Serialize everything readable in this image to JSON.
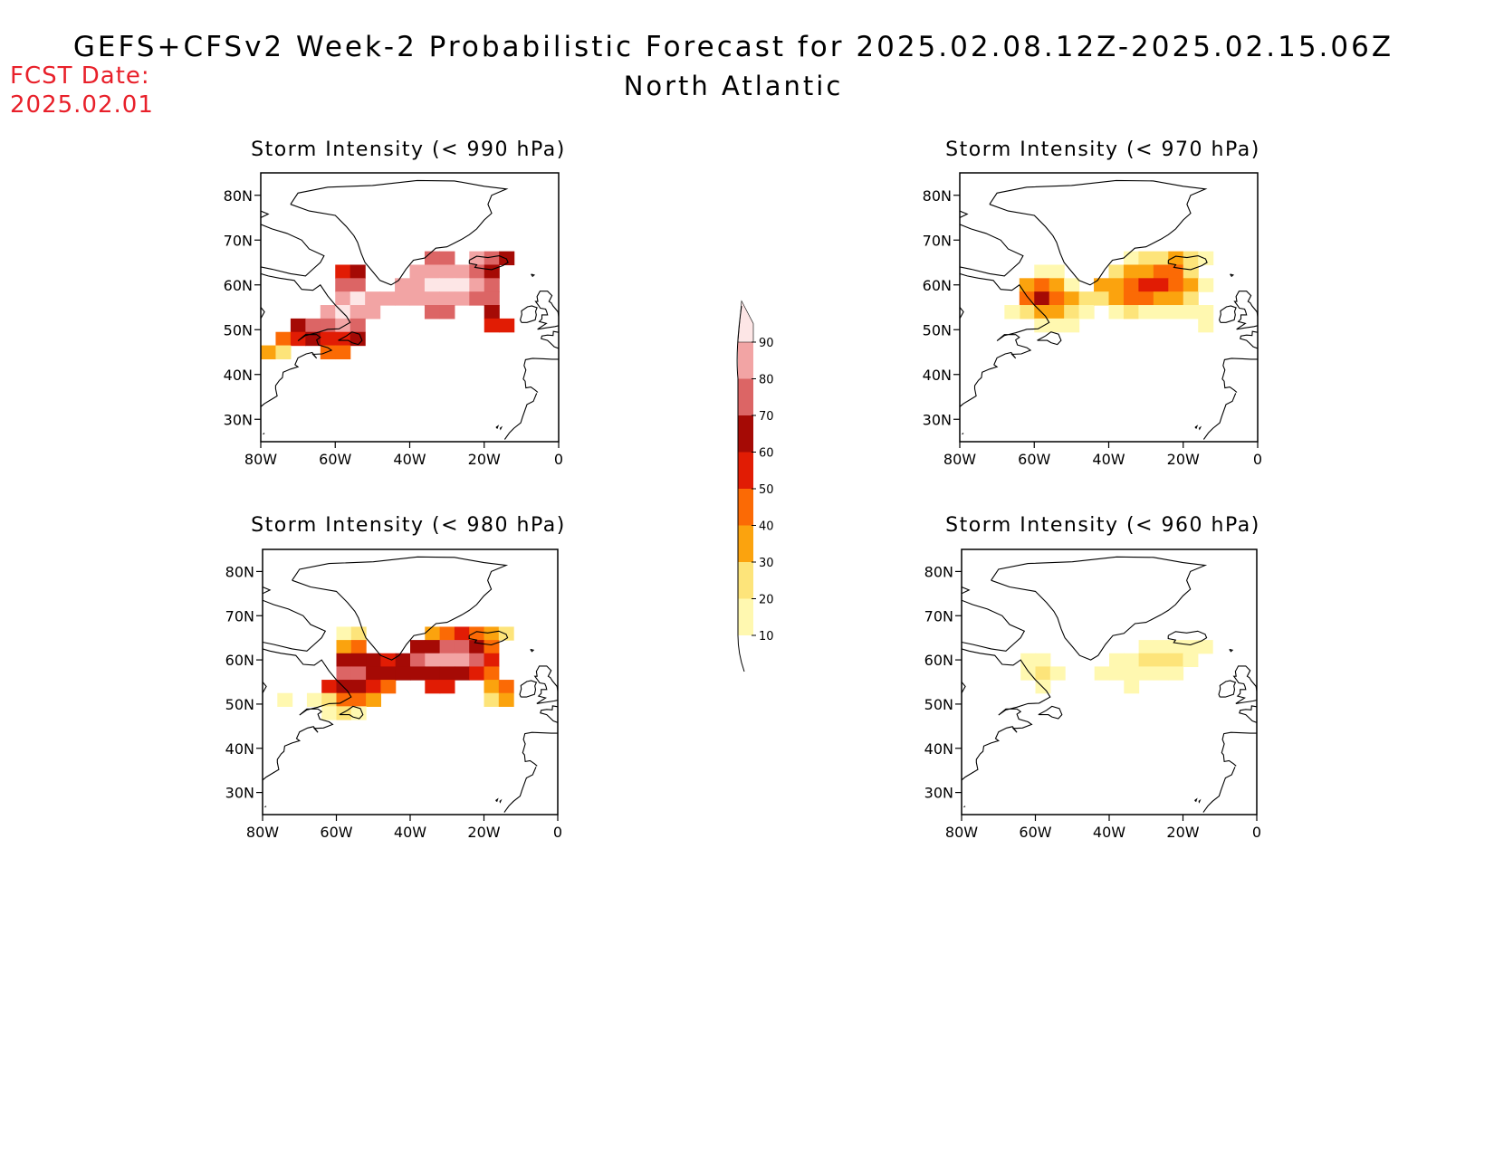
{
  "header": {
    "title": "GEFS+CFSv2 Week-2 Probabilistic Forecast for 2025.02.08.12Z-2025.02.15.06Z",
    "region": "North Atlantic",
    "fcst_label": "FCST Date:",
    "fcst_date": "2025.02.01"
  },
  "axes": {
    "lon_ticks": [
      "80W",
      "60W",
      "40W",
      "20W",
      "0"
    ],
    "lat_ticks": [
      "80N",
      "70N",
      "60N",
      "50N",
      "40N",
      "30N"
    ],
    "lon_range": [
      -80,
      0
    ],
    "lat_range": [
      25,
      85
    ]
  },
  "colorbar": {
    "labels": [
      "10",
      "20",
      "30",
      "40",
      "50",
      "60",
      "70",
      "80",
      "90"
    ],
    "bins": [
      {
        "min": 10,
        "max": 20,
        "color": "#fff8b0"
      },
      {
        "min": 20,
        "max": 30,
        "color": "#fde47a"
      },
      {
        "min": 30,
        "max": 40,
        "color": "#fba30e"
      },
      {
        "min": 40,
        "max": 50,
        "color": "#fb6a05"
      },
      {
        "min": 50,
        "max": 60,
        "color": "#e11c04"
      },
      {
        "min": 60,
        "max": 70,
        "color": "#a50a05"
      },
      {
        "min": 70,
        "max": 80,
        "color": "#dc6565"
      },
      {
        "min": 80,
        "max": 90,
        "color": "#f2a4a4"
      },
      {
        "min": 90,
        "max": 100,
        "color": "#fde6e6"
      }
    ]
  },
  "panels": [
    {
      "id": "p990",
      "title": "Storm Intensity (< 990 hPa)",
      "cells": [
        {
          "lon": -58,
          "lat": 63,
          "v": 55
        },
        {
          "lon": -54,
          "lat": 63,
          "v": 65
        },
        {
          "lon": -58,
          "lat": 60,
          "v": 75
        },
        {
          "lon": -54,
          "lat": 60,
          "v": 72
        },
        {
          "lon": -58,
          "lat": 57,
          "v": 85
        },
        {
          "lon": -54,
          "lat": 57,
          "v": 92
        },
        {
          "lon": -50,
          "lat": 57,
          "v": 88
        },
        {
          "lon": -46,
          "lat": 57,
          "v": 82
        },
        {
          "lon": -62,
          "lat": 54,
          "v": 82
        },
        {
          "lon": -58,
          "lat": 54,
          "v": 90
        },
        {
          "lon": -54,
          "lat": 54,
          "v": 86
        },
        {
          "lon": -50,
          "lat": 54,
          "v": 80
        },
        {
          "lon": -70,
          "lat": 51,
          "v": 62
        },
        {
          "lon": -66,
          "lat": 51,
          "v": 70
        },
        {
          "lon": -62,
          "lat": 51,
          "v": 75
        },
        {
          "lon": -58,
          "lat": 51,
          "v": 80
        },
        {
          "lon": -54,
          "lat": 51,
          "v": 72
        },
        {
          "lon": -74,
          "lat": 48,
          "v": 45
        },
        {
          "lon": -70,
          "lat": 48,
          "v": 55
        },
        {
          "lon": -66,
          "lat": 48,
          "v": 62
        },
        {
          "lon": -62,
          "lat": 48,
          "v": 58
        },
        {
          "lon": -58,
          "lat": 48,
          "v": 52
        },
        {
          "lon": -54,
          "lat": 48,
          "v": 60
        },
        {
          "lon": -78,
          "lat": 45,
          "v": 35
        },
        {
          "lon": -74,
          "lat": 45,
          "v": 25
        },
        {
          "lon": -62,
          "lat": 45,
          "v": 45
        },
        {
          "lon": -58,
          "lat": 45,
          "v": 48
        },
        {
          "lon": -34,
          "lat": 66,
          "v": 75
        },
        {
          "lon": -30,
          "lat": 66,
          "v": 78
        },
        {
          "lon": -22,
          "lat": 66,
          "v": 80
        },
        {
          "lon": -18,
          "lat": 66,
          "v": 72
        },
        {
          "lon": -14,
          "lat": 66,
          "v": 65
        },
        {
          "lon": -38,
          "lat": 63,
          "v": 80
        },
        {
          "lon": -34,
          "lat": 63,
          "v": 85
        },
        {
          "lon": -30,
          "lat": 63,
          "v": 86
        },
        {
          "lon": -26,
          "lat": 63,
          "v": 84
        },
        {
          "lon": -22,
          "lat": 63,
          "v": 78
        },
        {
          "lon": -18,
          "lat": 63,
          "v": 68
        },
        {
          "lon": -42,
          "lat": 60,
          "v": 82
        },
        {
          "lon": -38,
          "lat": 60,
          "v": 86
        },
        {
          "lon": -34,
          "lat": 60,
          "v": 92
        },
        {
          "lon": -30,
          "lat": 60,
          "v": 94
        },
        {
          "lon": -26,
          "lat": 60,
          "v": 90
        },
        {
          "lon": -22,
          "lat": 60,
          "v": 82
        },
        {
          "lon": -18,
          "lat": 60,
          "v": 75
        },
        {
          "lon": -42,
          "lat": 57,
          "v": 80
        },
        {
          "lon": -38,
          "lat": 57,
          "v": 84
        },
        {
          "lon": -34,
          "lat": 57,
          "v": 86
        },
        {
          "lon": -30,
          "lat": 57,
          "v": 85
        },
        {
          "lon": -26,
          "lat": 57,
          "v": 80
        },
        {
          "lon": -22,
          "lat": 57,
          "v": 76
        },
        {
          "lon": -18,
          "lat": 57,
          "v": 72
        },
        {
          "lon": -34,
          "lat": 54,
          "v": 75
        },
        {
          "lon": -30,
          "lat": 54,
          "v": 72
        },
        {
          "lon": -18,
          "lat": 54,
          "v": 62
        },
        {
          "lon": -14,
          "lat": 51,
          "v": 55
        },
        {
          "lon": -18,
          "lat": 51,
          "v": 58
        }
      ]
    },
    {
      "id": "p970",
      "title": "Storm Intensity (< 970 hPa)",
      "cells": [
        {
          "lon": -58,
          "lat": 63,
          "v": 15
        },
        {
          "lon": -54,
          "lat": 63,
          "v": 12
        },
        {
          "lon": -62,
          "lat": 60,
          "v": 30
        },
        {
          "lon": -58,
          "lat": 60,
          "v": 45
        },
        {
          "lon": -54,
          "lat": 60,
          "v": 35
        },
        {
          "lon": -50,
          "lat": 60,
          "v": 18
        },
        {
          "lon": -62,
          "lat": 57,
          "v": 45
        },
        {
          "lon": -58,
          "lat": 57,
          "v": 65
        },
        {
          "lon": -54,
          "lat": 57,
          "v": 48
        },
        {
          "lon": -50,
          "lat": 57,
          "v": 35
        },
        {
          "lon": -46,
          "lat": 57,
          "v": 22
        },
        {
          "lon": -62,
          "lat": 54,
          "v": 25
        },
        {
          "lon": -58,
          "lat": 54,
          "v": 35
        },
        {
          "lon": -54,
          "lat": 54,
          "v": 30
        },
        {
          "lon": -50,
          "lat": 54,
          "v": 28
        },
        {
          "lon": -46,
          "lat": 54,
          "v": 18
        },
        {
          "lon": -58,
          "lat": 51,
          "v": 15
        },
        {
          "lon": -54,
          "lat": 51,
          "v": 18
        },
        {
          "lon": -50,
          "lat": 51,
          "v": 12
        },
        {
          "lon": -66,
          "lat": 54,
          "v": 12
        },
        {
          "lon": -34,
          "lat": 66,
          "v": 15
        },
        {
          "lon": -30,
          "lat": 66,
          "v": 25
        },
        {
          "lon": -26,
          "lat": 66,
          "v": 28
        },
        {
          "lon": -22,
          "lat": 66,
          "v": 32
        },
        {
          "lon": -18,
          "lat": 66,
          "v": 20
        },
        {
          "lon": -14,
          "lat": 66,
          "v": 14
        },
        {
          "lon": -38,
          "lat": 63,
          "v": 25
        },
        {
          "lon": -34,
          "lat": 63,
          "v": 35
        },
        {
          "lon": -30,
          "lat": 63,
          "v": 38
        },
        {
          "lon": -26,
          "lat": 63,
          "v": 42
        },
        {
          "lon": -22,
          "lat": 63,
          "v": 40
        },
        {
          "lon": -18,
          "lat": 63,
          "v": 28
        },
        {
          "lon": -42,
          "lat": 60,
          "v": 32
        },
        {
          "lon": -38,
          "lat": 60,
          "v": 38
        },
        {
          "lon": -34,
          "lat": 60,
          "v": 45
        },
        {
          "lon": -30,
          "lat": 60,
          "v": 55
        },
        {
          "lon": -26,
          "lat": 60,
          "v": 52
        },
        {
          "lon": -22,
          "lat": 60,
          "v": 48
        },
        {
          "lon": -18,
          "lat": 60,
          "v": 30
        },
        {
          "lon": -14,
          "lat": 60,
          "v": 15
        },
        {
          "lon": -42,
          "lat": 57,
          "v": 28
        },
        {
          "lon": -38,
          "lat": 57,
          "v": 35
        },
        {
          "lon": -34,
          "lat": 57,
          "v": 42
        },
        {
          "lon": -30,
          "lat": 57,
          "v": 40
        },
        {
          "lon": -26,
          "lat": 57,
          "v": 38
        },
        {
          "lon": -22,
          "lat": 57,
          "v": 32
        },
        {
          "lon": -18,
          "lat": 57,
          "v": 22
        },
        {
          "lon": -38,
          "lat": 54,
          "v": 15
        },
        {
          "lon": -34,
          "lat": 54,
          "v": 22
        },
        {
          "lon": -30,
          "lat": 54,
          "v": 18
        },
        {
          "lon": -26,
          "lat": 54,
          "v": 15
        },
        {
          "lon": -22,
          "lat": 54,
          "v": 14
        },
        {
          "lon": -18,
          "lat": 54,
          "v": 12
        },
        {
          "lon": -14,
          "lat": 54,
          "v": 12
        },
        {
          "lon": -14,
          "lat": 51,
          "v": 11
        }
      ]
    },
    {
      "id": "p980",
      "title": "Storm Intensity (< 980 hPa)",
      "cells": [
        {
          "lon": -58,
          "lat": 66,
          "v": 15
        },
        {
          "lon": -54,
          "lat": 66,
          "v": 20
        },
        {
          "lon": -58,
          "lat": 63,
          "v": 35
        },
        {
          "lon": -54,
          "lat": 63,
          "v": 42
        },
        {
          "lon": -58,
          "lat": 60,
          "v": 65
        },
        {
          "lon": -54,
          "lat": 60,
          "v": 68
        },
        {
          "lon": -50,
          "lat": 60,
          "v": 62
        },
        {
          "lon": -46,
          "lat": 60,
          "v": 58
        },
        {
          "lon": -58,
          "lat": 57,
          "v": 72
        },
        {
          "lon": -54,
          "lat": 57,
          "v": 75
        },
        {
          "lon": -50,
          "lat": 57,
          "v": 65
        },
        {
          "lon": -46,
          "lat": 57,
          "v": 62
        },
        {
          "lon": -62,
          "lat": 54,
          "v": 55
        },
        {
          "lon": -58,
          "lat": 54,
          "v": 60
        },
        {
          "lon": -54,
          "lat": 54,
          "v": 65
        },
        {
          "lon": -50,
          "lat": 54,
          "v": 55
        },
        {
          "lon": -46,
          "lat": 54,
          "v": 48
        },
        {
          "lon": -66,
          "lat": 51,
          "v": 15
        },
        {
          "lon": -62,
          "lat": 51,
          "v": 25
        },
        {
          "lon": -58,
          "lat": 51,
          "v": 40
        },
        {
          "lon": -54,
          "lat": 51,
          "v": 45
        },
        {
          "lon": -50,
          "lat": 51,
          "v": 35
        },
        {
          "lon": -74,
          "lat": 51,
          "v": 12
        },
        {
          "lon": -62,
          "lat": 48,
          "v": 18
        },
        {
          "lon": -58,
          "lat": 48,
          "v": 25
        },
        {
          "lon": -54,
          "lat": 48,
          "v": 15
        },
        {
          "lon": -34,
          "lat": 66,
          "v": 35
        },
        {
          "lon": -30,
          "lat": 66,
          "v": 48
        },
        {
          "lon": -26,
          "lat": 66,
          "v": 52
        },
        {
          "lon": -22,
          "lat": 66,
          "v": 45
        },
        {
          "lon": -18,
          "lat": 66,
          "v": 35
        },
        {
          "lon": -14,
          "lat": 66,
          "v": 22
        },
        {
          "lon": -38,
          "lat": 63,
          "v": 60
        },
        {
          "lon": -34,
          "lat": 63,
          "v": 68
        },
        {
          "lon": -30,
          "lat": 63,
          "v": 72
        },
        {
          "lon": -26,
          "lat": 63,
          "v": 70
        },
        {
          "lon": -22,
          "lat": 63,
          "v": 65
        },
        {
          "lon": -18,
          "lat": 63,
          "v": 45
        },
        {
          "lon": -42,
          "lat": 60,
          "v": 65
        },
        {
          "lon": -38,
          "lat": 60,
          "v": 72
        },
        {
          "lon": -34,
          "lat": 60,
          "v": 82
        },
        {
          "lon": -30,
          "lat": 60,
          "v": 85
        },
        {
          "lon": -26,
          "lat": 60,
          "v": 80
        },
        {
          "lon": -22,
          "lat": 60,
          "v": 70
        },
        {
          "lon": -18,
          "lat": 60,
          "v": 55
        },
        {
          "lon": -42,
          "lat": 57,
          "v": 62
        },
        {
          "lon": -38,
          "lat": 57,
          "v": 68
        },
        {
          "lon": -34,
          "lat": 57,
          "v": 65
        },
        {
          "lon": -30,
          "lat": 57,
          "v": 66
        },
        {
          "lon": -26,
          "lat": 57,
          "v": 62
        },
        {
          "lon": -22,
          "lat": 57,
          "v": 58
        },
        {
          "lon": -18,
          "lat": 57,
          "v": 48
        },
        {
          "lon": -34,
          "lat": 54,
          "v": 55
        },
        {
          "lon": -30,
          "lat": 54,
          "v": 50
        },
        {
          "lon": -18,
          "lat": 54,
          "v": 35
        },
        {
          "lon": -14,
          "lat": 54,
          "v": 42
        },
        {
          "lon": -18,
          "lat": 51,
          "v": 25
        },
        {
          "lon": -14,
          "lat": 51,
          "v": 30
        }
      ]
    },
    {
      "id": "p960",
      "title": "Storm Intensity (< 960 hPa)",
      "cells": [
        {
          "lon": -62,
          "lat": 60,
          "v": 12
        },
        {
          "lon": -58,
          "lat": 60,
          "v": 15
        },
        {
          "lon": -62,
          "lat": 57,
          "v": 15
        },
        {
          "lon": -58,
          "lat": 57,
          "v": 28
        },
        {
          "lon": -54,
          "lat": 57,
          "v": 14
        },
        {
          "lon": -58,
          "lat": 54,
          "v": 12
        },
        {
          "lon": -30,
          "lat": 63,
          "v": 12
        },
        {
          "lon": -26,
          "lat": 63,
          "v": 14
        },
        {
          "lon": -22,
          "lat": 63,
          "v": 15
        },
        {
          "lon": -18,
          "lat": 63,
          "v": 12
        },
        {
          "lon": -14,
          "lat": 63,
          "v": 11
        },
        {
          "lon": -38,
          "lat": 60,
          "v": 14
        },
        {
          "lon": -34,
          "lat": 60,
          "v": 18
        },
        {
          "lon": -30,
          "lat": 60,
          "v": 25
        },
        {
          "lon": -26,
          "lat": 60,
          "v": 20
        },
        {
          "lon": -22,
          "lat": 60,
          "v": 24
        },
        {
          "lon": -18,
          "lat": 60,
          "v": 16
        },
        {
          "lon": -42,
          "lat": 57,
          "v": 12
        },
        {
          "lon": -38,
          "lat": 57,
          "v": 15
        },
        {
          "lon": -34,
          "lat": 57,
          "v": 16
        },
        {
          "lon": -30,
          "lat": 57,
          "v": 14
        },
        {
          "lon": -26,
          "lat": 57,
          "v": 13
        },
        {
          "lon": -22,
          "lat": 57,
          "v": 12
        },
        {
          "lon": -34,
          "lat": 54,
          "v": 11
        }
      ]
    }
  ]
}
